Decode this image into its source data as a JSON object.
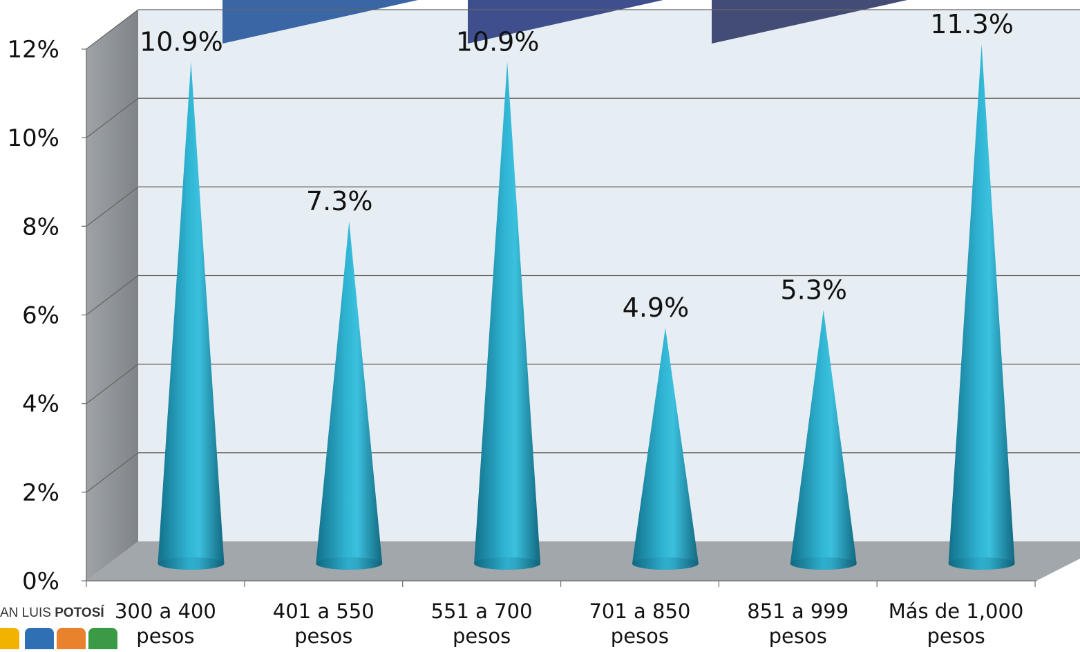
{
  "chart_data": {
    "type": "bar",
    "bar_shape": "cone",
    "categories": [
      [
        "300 a 400",
        "pesos"
      ],
      [
        "401 a 550",
        "pesos"
      ],
      [
        "551 a 700",
        "pesos"
      ],
      [
        "701 a 850",
        "pesos"
      ],
      [
        "851 a 999",
        "pesos"
      ],
      [
        "Más de 1,000",
        "pesos"
      ]
    ],
    "values": [
      10.9,
      7.3,
      10.9,
      4.9,
      5.3,
      11.3
    ],
    "data_labels": [
      "10.9%",
      "7.3%",
      "10.9%",
      "4.9%",
      "5.3%",
      "11.3%"
    ],
    "y_ticks": [
      "0%",
      "2%",
      "4%",
      "6%",
      "8%",
      "10%",
      "12%"
    ],
    "ylim": [
      0,
      12
    ],
    "grid": true,
    "colors": {
      "cone": "#2aaccb",
      "wall": "#e6eef4",
      "side_wall": "#8f9498",
      "floor": "#a2a7ab",
      "gridline": "#666666",
      "banner_1": "#3a66a6",
      "banner_2": "#3f4f8e",
      "banner_3": "#434c75"
    }
  },
  "logo": {
    "text_regular": "AN LUIS ",
    "text_bold": "POTOSÍ",
    "bar_colors": [
      "#f2b300",
      "#2f6fb3",
      "#e9822d",
      "#3a9a46"
    ]
  }
}
